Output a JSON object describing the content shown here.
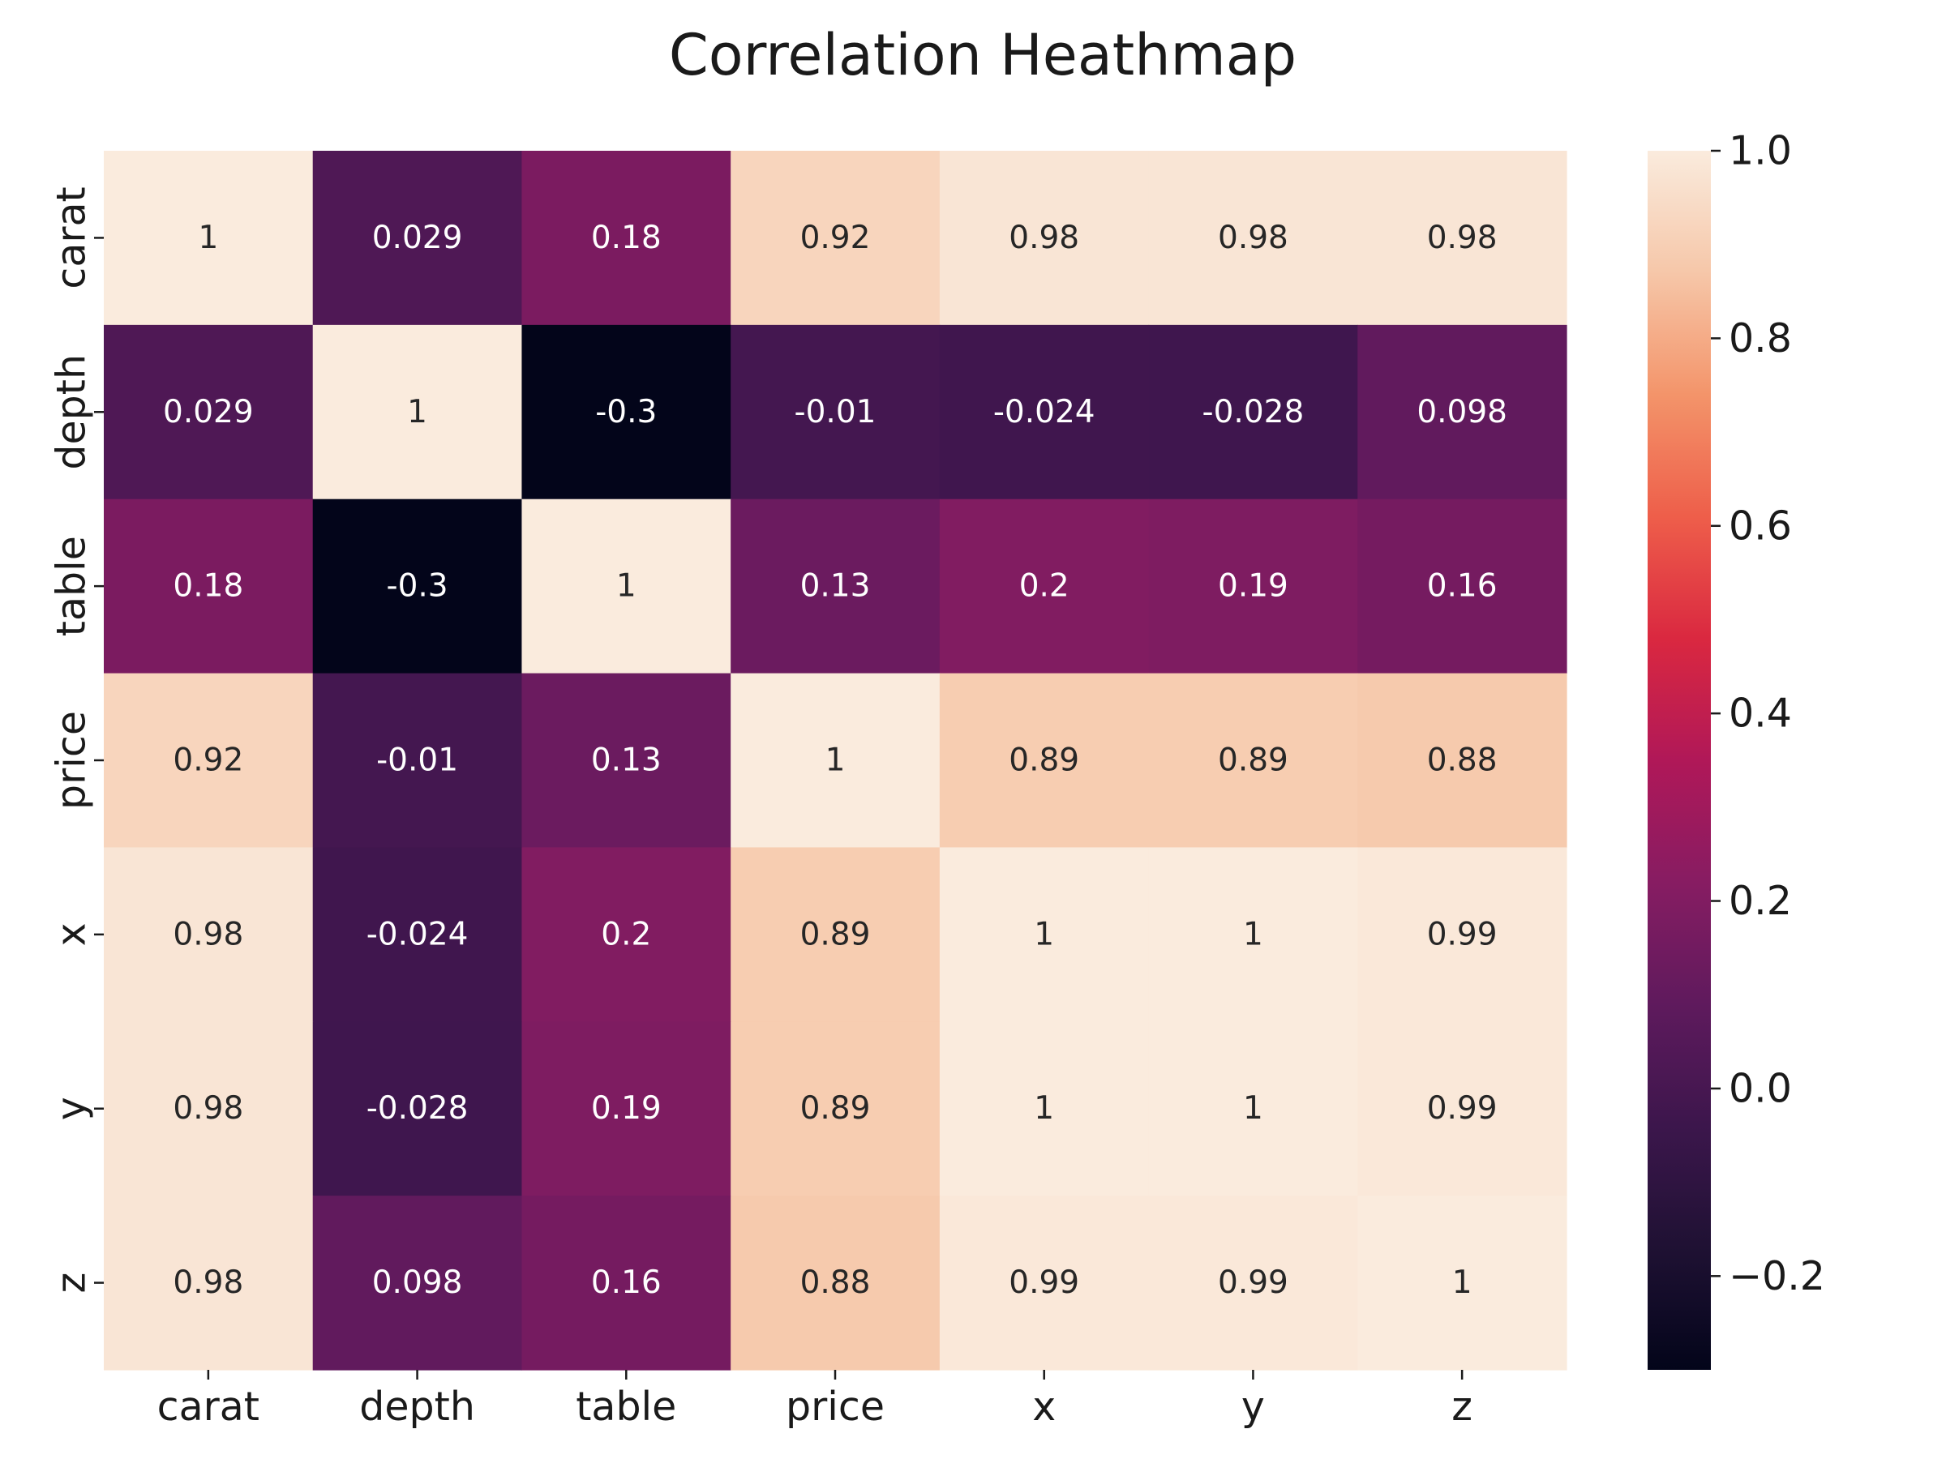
{
  "chart_data": {
    "type": "heatmap",
    "title": "Correlation Heathmap",
    "xlabel": "",
    "ylabel": "",
    "x_categories": [
      "carat",
      "depth",
      "table",
      "price",
      "x",
      "y",
      "z"
    ],
    "y_categories": [
      "carat",
      "depth",
      "table",
      "price",
      "x",
      "y",
      "z"
    ],
    "values": [
      [
        1,
        0.029,
        0.18,
        0.92,
        0.98,
        0.98,
        0.98
      ],
      [
        0.029,
        1,
        -0.3,
        -0.01,
        -0.024,
        -0.028,
        0.098
      ],
      [
        0.18,
        -0.3,
        1,
        0.13,
        0.2,
        0.19,
        0.16
      ],
      [
        0.92,
        -0.01,
        0.13,
        1,
        0.89,
        0.89,
        0.88
      ],
      [
        0.98,
        -0.024,
        0.2,
        0.89,
        1,
        1,
        0.99
      ],
      [
        0.98,
        -0.028,
        0.19,
        0.89,
        1,
        1,
        0.99
      ],
      [
        0.98,
        0.098,
        0.16,
        0.88,
        0.99,
        0.99,
        1
      ]
    ],
    "annotations": [
      [
        "1",
        "0.029",
        "0.18",
        "0.92",
        "0.98",
        "0.98",
        "0.98"
      ],
      [
        "0.029",
        "1",
        "-0.3",
        "-0.01",
        "-0.024",
        "-0.028",
        "0.098"
      ],
      [
        "0.18",
        "-0.3",
        "1",
        "0.13",
        "0.2",
        "0.19",
        "0.16"
      ],
      [
        "0.92",
        "-0.01",
        "0.13",
        "1",
        "0.89",
        "0.89",
        "0.88"
      ],
      [
        "0.98",
        "-0.024",
        "0.2",
        "0.89",
        "1",
        "1",
        "0.99"
      ],
      [
        "0.98",
        "-0.028",
        "0.19",
        "0.89",
        "1",
        "1",
        "0.99"
      ],
      [
        "0.98",
        "0.098",
        "0.16",
        "0.88",
        "0.99",
        "0.99",
        "1"
      ]
    ],
    "colorscale": "rocket",
    "vmin": -0.3,
    "vmax": 1.0,
    "colorbar": {
      "ticks": [
        -0.2,
        0.0,
        0.2,
        0.4,
        0.6,
        0.8,
        1.0
      ],
      "tick_labels": [
        "−0.2",
        "0.0",
        "0.2",
        "0.4",
        "0.6",
        "0.8",
        "1.0"
      ]
    },
    "grid": false
  }
}
